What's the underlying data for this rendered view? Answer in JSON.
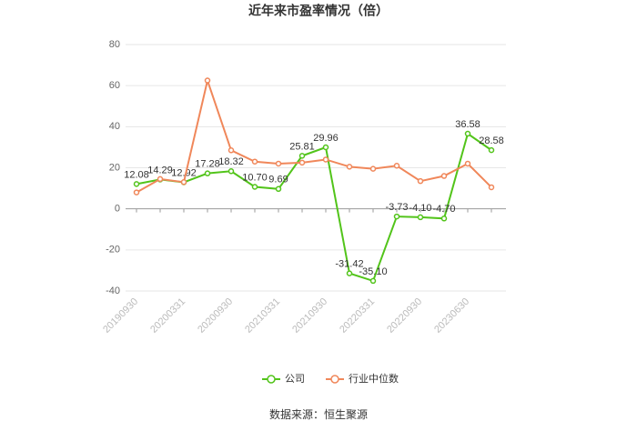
{
  "chart_data": {
    "type": "line",
    "title": "近年来市盈率情况（倍）",
    "categories": [
      "20190930",
      null,
      "20200331",
      null,
      "20200930",
      null,
      "20210331",
      null,
      "20210930",
      null,
      "20220331",
      null,
      "20220930",
      null,
      "20230630",
      null
    ],
    "series": [
      {
        "name": "公司",
        "color": "#52c41a",
        "values": [
          12.08,
          14.29,
          12.92,
          17.28,
          18.32,
          10.7,
          9.69,
          25.81,
          29.96,
          -31.42,
          -35.1,
          -3.73,
          -4.1,
          -4.7,
          36.58,
          28.58
        ],
        "value_labels": [
          "12.08",
          "14.29",
          "12.92",
          "17.28",
          "18.32",
          "10.70",
          "9.69",
          "25.81",
          "29.96",
          "-31.42",
          "-35.10",
          "-3.73",
          "-4.10",
          "-4.70",
          "36.58",
          "28.58"
        ]
      },
      {
        "name": "行业中位数",
        "color": "#f0875a",
        "values": [
          8,
          14.5,
          13,
          62.5,
          28.5,
          23,
          22,
          22.5,
          24,
          20.5,
          19.5,
          21,
          13.5,
          16,
          22,
          10.5
        ]
      }
    ],
    "ylim": [
      -40,
      80
    ],
    "yticks": [
      -40,
      -20,
      0,
      20,
      40,
      60,
      80
    ],
    "grid": true,
    "source": "数据来源：恒生聚源"
  }
}
